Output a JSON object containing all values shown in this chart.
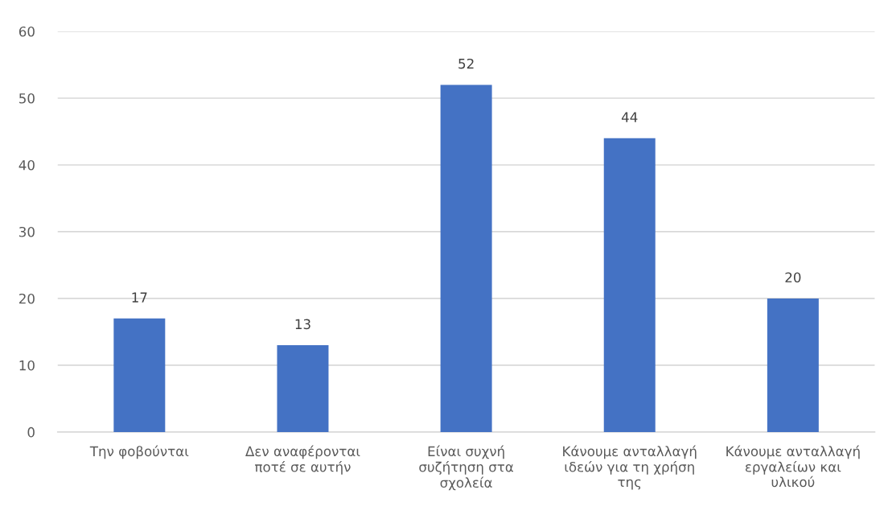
{
  "chart_data": {
    "type": "bar",
    "categories": [
      "Την φοβούνται",
      "Δεν αναφέρονται\nποτέ σε αυτήν",
      "Είναι συχνή\nσυζήτηση στα\nσχολεία",
      "Κάνουμε ανταλλαγή\nιδεών για τη χρήση\nτης",
      "Κάνουμε ανταλλαγή\nεργαλείων και\nυλικού"
    ],
    "values": [
      17,
      13,
      52,
      44,
      20
    ],
    "color": "#4472c4",
    "ylim": [
      0,
      60
    ],
    "yticks": [
      0,
      10,
      20,
      30,
      40,
      50,
      60
    ],
    "grid": "y",
    "data_labels": true
  }
}
